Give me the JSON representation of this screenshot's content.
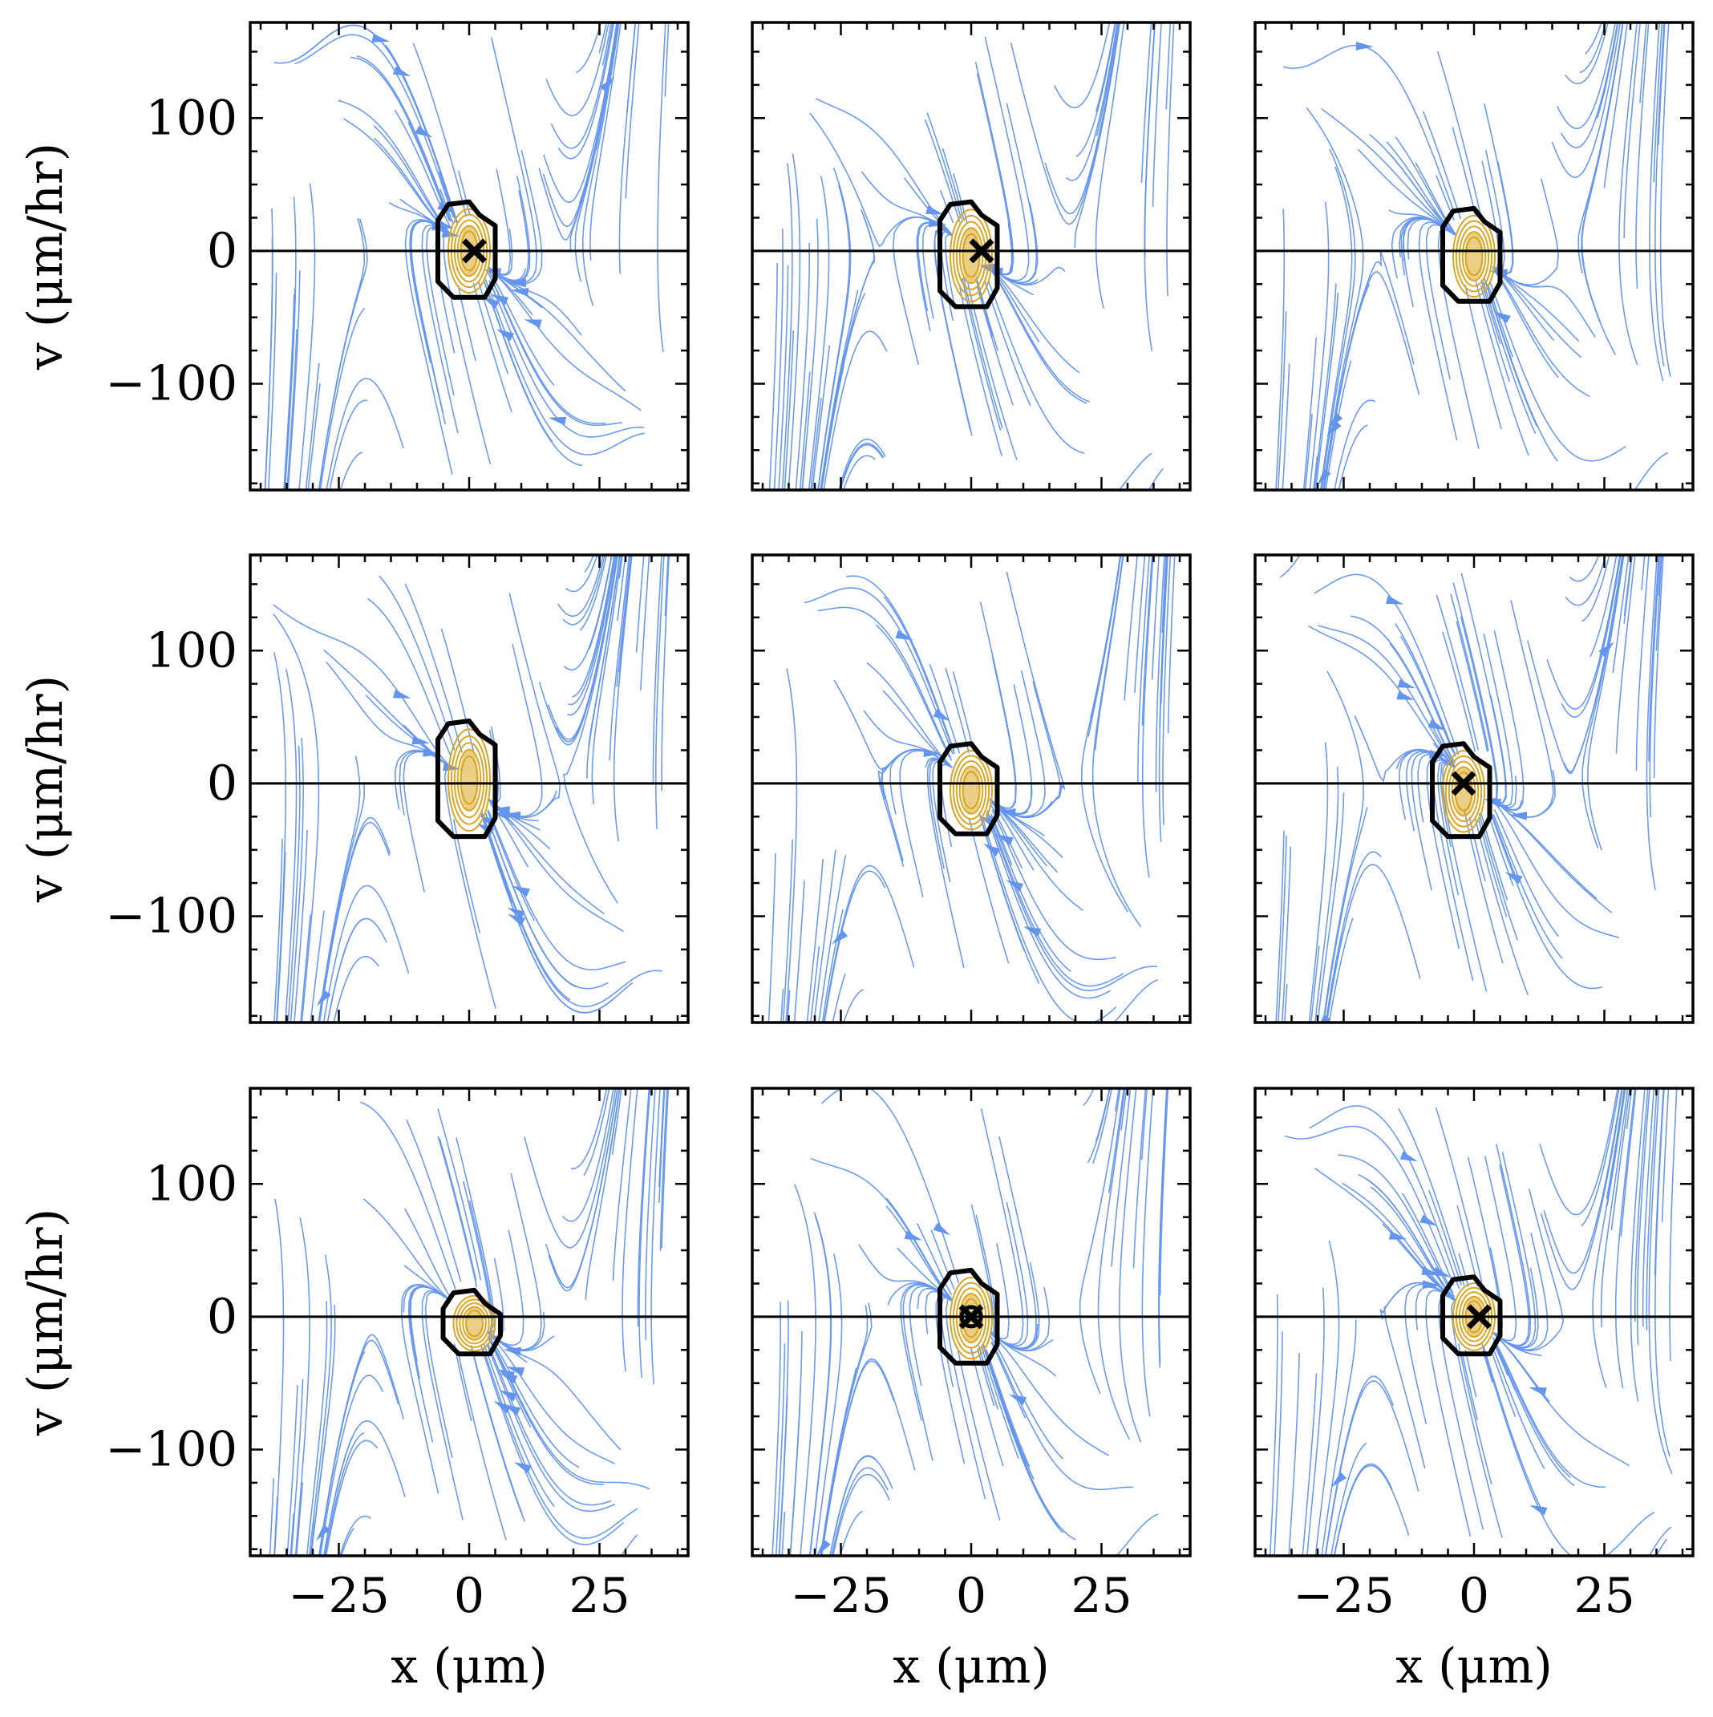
{
  "figure": {
    "type": "phase-portrait-grid",
    "rows": 3,
    "cols": 3
  },
  "colors": {
    "streamline": "#6495ed",
    "density": "#daa520",
    "contour": "#000000",
    "axis": "#000000"
  },
  "axes": {
    "xlabel": "x (μm)",
    "ylabel": "v (μm/hr)",
    "xlim": [
      -42,
      42
    ],
    "ylim": [
      -180,
      172
    ],
    "xticks": [
      -25,
      0,
      25
    ],
    "xticklabels": [
      "−25",
      "0",
      "25"
    ],
    "yticks": [
      100,
      0,
      -100
    ],
    "yticklabels": [
      "100",
      "0",
      "−100"
    ]
  },
  "chart_data": [
    {
      "type": "streamplot",
      "row": 0,
      "col": 0,
      "fixed_point": {
        "x": 1,
        "v": 0
      },
      "fixed_point_marker": "x",
      "contour_center": {
        "x": 0,
        "v": 0
      },
      "contour_half_width": 5,
      "contour_v_range": [
        -35,
        35
      ]
    },
    {
      "type": "streamplot",
      "row": 0,
      "col": 1,
      "fixed_point": {
        "x": 2,
        "v": 0
      },
      "fixed_point_marker": "x",
      "contour_center": {
        "x": 0,
        "v": 0
      },
      "contour_half_width": 5,
      "contour_v_range": [
        -42,
        35
      ]
    },
    {
      "type": "streamplot",
      "row": 0,
      "col": 2,
      "fixed_point": null,
      "fixed_point_marker": "none",
      "contour_center": {
        "x": 0,
        "v": 0
      },
      "contour_half_width": 5,
      "contour_v_range": [
        -38,
        30
      ]
    },
    {
      "type": "streamplot",
      "row": 1,
      "col": 0,
      "fixed_point": null,
      "fixed_point_marker": "none",
      "contour_center": {
        "x": 0,
        "v": 0
      },
      "contour_half_width": 5,
      "contour_v_range": [
        -40,
        45
      ]
    },
    {
      "type": "streamplot",
      "row": 1,
      "col": 1,
      "fixed_point": null,
      "fixed_point_marker": "none",
      "contour_center": {
        "x": 0,
        "v": 0
      },
      "contour_half_width": 5,
      "contour_v_range": [
        -38,
        28
      ]
    },
    {
      "type": "streamplot",
      "row": 1,
      "col": 2,
      "fixed_point": {
        "x": -2,
        "v": 0
      },
      "fixed_point_marker": "x",
      "contour_center": {
        "x": -2,
        "v": 0
      },
      "contour_half_width": 5,
      "contour_v_range": [
        -40,
        28
      ]
    },
    {
      "type": "streamplot",
      "row": 2,
      "col": 0,
      "fixed_point": null,
      "fixed_point_marker": "none",
      "contour_center": {
        "x": 1,
        "v": 0
      },
      "contour_half_width": 5,
      "contour_v_range": [
        -28,
        18
      ]
    },
    {
      "type": "streamplot",
      "row": 2,
      "col": 1,
      "fixed_point": {
        "x": 0,
        "v": 0
      },
      "fixed_point_marker": "x-and-o",
      "contour_center": {
        "x": 0,
        "v": 0
      },
      "contour_half_width": 5,
      "contour_v_range": [
        -35,
        33
      ]
    },
    {
      "type": "streamplot",
      "row": 2,
      "col": 2,
      "fixed_point": {
        "x": 1,
        "v": 0
      },
      "fixed_point_marker": "x",
      "contour_center": {
        "x": 0,
        "v": 0
      },
      "contour_half_width": 5,
      "contour_v_range": [
        -28,
        28
      ]
    }
  ]
}
